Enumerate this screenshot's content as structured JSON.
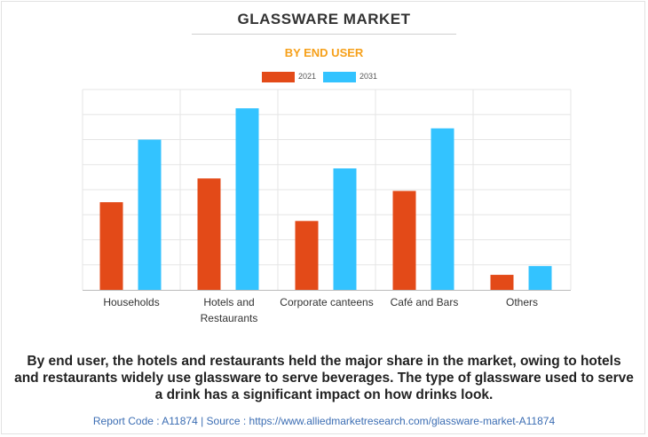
{
  "title": "GLASSWARE MARKET",
  "subtitle": "BY END USER",
  "colors": {
    "2021": "#e34a18",
    "2031": "#33c3ff",
    "subtitle": "#f6a01a",
    "grid": "#e5e5e5"
  },
  "chart_data": {
    "type": "bar",
    "categories": [
      "Households",
      "Hotels and Restaurants",
      "Corporate canteens",
      "Café and Bars",
      "Others"
    ],
    "category_lines": [
      [
        "Households"
      ],
      [
        "Hotels and",
        "Restaurants"
      ],
      [
        "Corporate canteens"
      ],
      [
        "Café and Bars"
      ],
      [
        "Others"
      ]
    ],
    "series": [
      {
        "name": "2021",
        "values": [
          3.5,
          4.45,
          2.75,
          3.95,
          0.6
        ]
      },
      {
        "name": "2031",
        "values": [
          6.0,
          7.25,
          4.85,
          6.45,
          0.95
        ]
      }
    ],
    "ylim": [
      0,
      8
    ],
    "y_axis_labels_shown": false,
    "grid": true,
    "legend_position": "top-center"
  },
  "caption": "By end user, the hotels and restaurants held the major share in the market, owing to hotels and restaurants widely use glassware to serve beverages. The type of glassware used to serve a drink has a significant impact on how drinks look.",
  "footer": "Report Code : A11874  |  Source : https://www.alliedmarketresearch.com/glassware-market-A11874"
}
